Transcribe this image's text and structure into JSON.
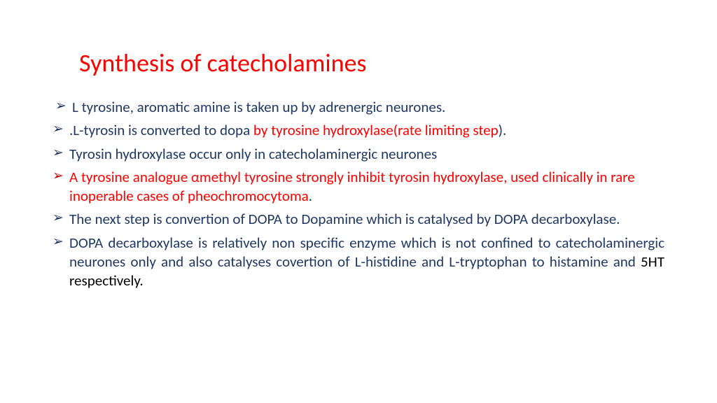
{
  "colors": {
    "title": "#ff0000",
    "body_navy": "#1f3864",
    "body_red": "#ff0000",
    "body_black": "#000000",
    "bullet_navy": "#1f3864",
    "bullet_red": "#c00000",
    "background": "#ffffff"
  },
  "typography": {
    "title_fontsize": 36,
    "body_fontsize": 21,
    "font_family": "Calibri"
  },
  "title": "Synthesis of catecholamines",
  "bullets": [
    {
      "bullet_color": "#1f3864",
      "indent": true,
      "justify": false,
      "runs": [
        {
          "text": "L tyrosine, aromatic amine is taken up by adrenergic neurones.",
          "color": "#1f3864"
        }
      ]
    },
    {
      "bullet_color": "#1f3864",
      "indent": false,
      "justify": false,
      "runs": [
        {
          "text": ".L-tyrosin is converted to dopa ",
          "color": "#1f3864"
        },
        {
          "text": "by tyrosine hydroxylase(rate limiting step",
          "color": "#ff0000"
        },
        {
          "text": ").",
          "color": "#1f3864"
        }
      ]
    },
    {
      "bullet_color": "#1f3864",
      "indent": false,
      "justify": false,
      "runs": [
        {
          "text": "Tyrosin hydroxylase occur only in catecholaminergic neurones",
          "color": "#1f3864"
        }
      ]
    },
    {
      "bullet_color": "#c00000",
      "indent": false,
      "justify": false,
      "runs": [
        {
          "text": "A tyrosine analogue  αmethyl tyrosine strongly inhibit tyrosin hydroxylase, used clinically in rare inoperable cases of pheochromocytoma",
          "color": "#ff0000"
        },
        {
          "text": ".",
          "color": "#1f3864"
        }
      ]
    },
    {
      "bullet_color": "#1f3864",
      "indent": false,
      "justify": true,
      "runs": [
        {
          "text": "The next step is convertion of DOPA to Dopamine which is catalysed by DOPA decarboxylase.",
          "color": "#1f3864"
        }
      ]
    },
    {
      "bullet_color": "#1f3864",
      "indent": false,
      "justify": true,
      "runs": [
        {
          "text": "DOPA decarboxylase is relatively non specific enzyme which is not confined to catecholaminergic neurones only and also catalyses covertion of L-histidine and L-tryptophan to histamine and ",
          "color": "#1f3864"
        },
        {
          "text": "5HT respectively.",
          "color": "#000000"
        }
      ]
    }
  ]
}
